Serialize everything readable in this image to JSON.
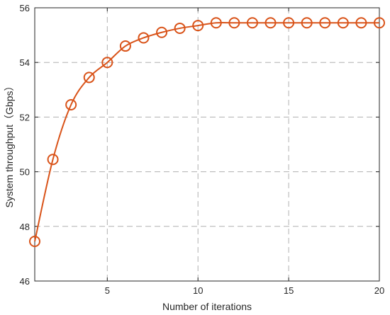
{
  "chart_data": {
    "type": "line",
    "xlabel": "Number of iterations",
    "ylabel": "System throughput（Gbps）",
    "xlim": [
      1,
      20
    ],
    "ylim": [
      46,
      56
    ],
    "xticks": [
      5,
      10,
      15,
      20
    ],
    "yticks": [
      46,
      48,
      50,
      52,
      54,
      56
    ],
    "grid": true,
    "series": [
      {
        "color": "#D95319",
        "marker": "circle",
        "x": [
          1,
          2,
          3,
          4,
          5,
          6,
          7,
          8,
          9,
          10,
          11,
          12,
          13,
          14,
          15,
          16,
          17,
          18,
          19,
          20
        ],
        "y": [
          47.45,
          50.45,
          52.45,
          53.45,
          54.0,
          54.6,
          54.9,
          55.1,
          55.25,
          55.35,
          55.45,
          55.45,
          55.45,
          55.45,
          55.45,
          55.45,
          55.45,
          55.45,
          55.45,
          55.45
        ]
      }
    ]
  }
}
